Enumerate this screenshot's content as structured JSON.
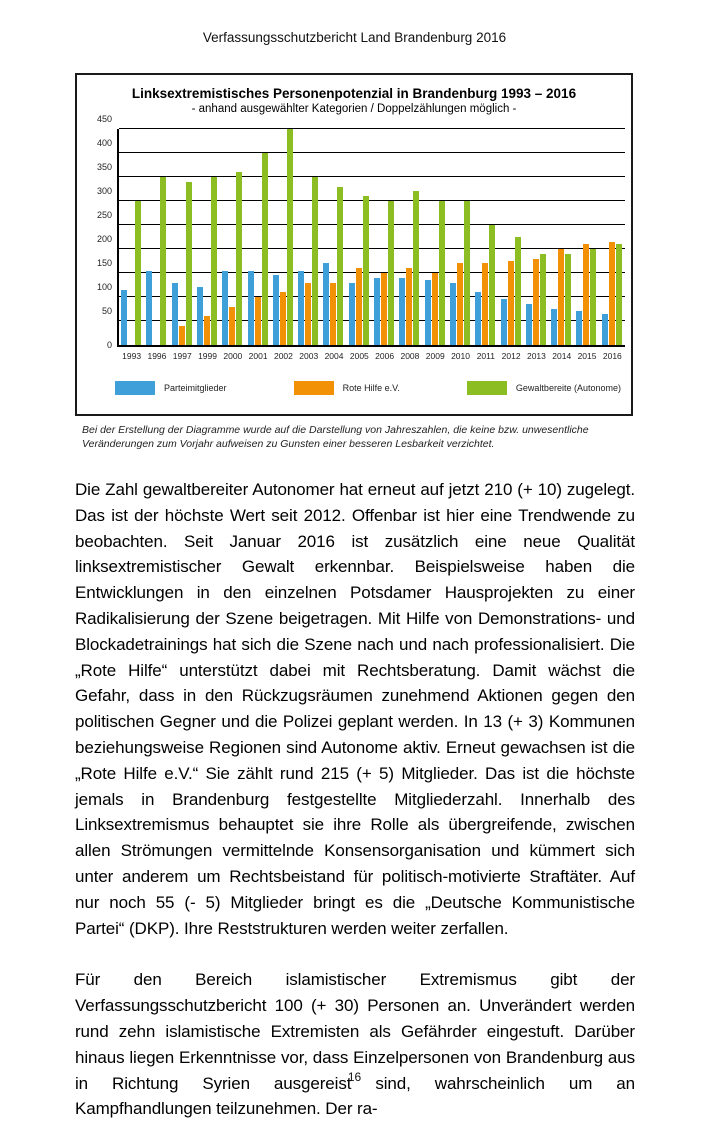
{
  "page": {
    "header_title": "Verfassungsschutzbericht Land Brandenburg 2016",
    "page_number": "16"
  },
  "chart_data": {
    "type": "bar",
    "title": "Linksextremistisches Personenpotenzial in Brandenburg 1993 – 2016",
    "subtitle": "- anhand ausgewählter Kategorien / Doppelzählungen möglich -",
    "categories": [
      "1993",
      "1996",
      "1997",
      "1999",
      "2000",
      "2001",
      "2002",
      "2003",
      "2004",
      "2005",
      "2006",
      "2008",
      "2009",
      "2010",
      "2011",
      "2012",
      "2013",
      "2014",
      "2015",
      "2016"
    ],
    "series": [
      {
        "name": "Parteimitglieder",
        "color": "#3FA0D9",
        "values": [
          115,
          155,
          130,
          120,
          155,
          155,
          145,
          155,
          170,
          130,
          140,
          140,
          135,
          130,
          110,
          95,
          85,
          75,
          70,
          65
        ]
      },
      {
        "name": "Rote Hilfe e.V.",
        "color": "#F29105",
        "values": [
          null,
          null,
          40,
          60,
          80,
          100,
          110,
          130,
          130,
          160,
          150,
          160,
          150,
          170,
          170,
          175,
          180,
          200,
          210,
          215
        ]
      },
      {
        "name": "Gewaltbereite (Autonome)",
        "color": "#8CBD22",
        "values": [
          300,
          350,
          340,
          350,
          360,
          400,
          450,
          350,
          330,
          310,
          300,
          320,
          300,
          300,
          250,
          225,
          190,
          190,
          200,
          210
        ]
      }
    ],
    "xlabel": "",
    "ylabel": "",
    "ylim": [
      0,
      450
    ],
    "ytick_step": 50,
    "grid": true,
    "legend_position": "bottom"
  },
  "note": "Bei der Erstellung der Diagramme wurde auf die Darstellung von Jahreszahlen, die keine bzw. unwesentliche Veränderungen zum Vorjahr aufweisen zu Gunsten einer besseren Lesbarkeit verzichtet.",
  "paragraphs": [
    "Die Zahl gewaltbereiter Autonomer hat erneut auf jetzt 210 (+ 10) zugelegt. Das ist der höchste Wert seit 2012. Offenbar ist hier eine Trendwende zu beobachten. Seit Januar 2016 ist zusätzlich eine neue Qualität linksextremistischer Gewalt erkennbar. Beispielsweise haben die Entwicklungen in den einzelnen Potsdamer Hausprojekten zu einer Radikalisierung der Szene beigetragen. Mit Hilfe von Demonstrations- und Blockadetrainings hat sich die Szene nach und nach professionalisiert. Die „Rote Hilfe“ unterstützt dabei mit Rechtsberatung. Damit wächst die Gefahr, dass in den Rückzugsräumen zunehmend Aktionen gegen den politischen Gegner und die Polizei geplant werden. In 13 (+ 3) Kommunen beziehungsweise Regionen sind Autonome aktiv. Erneut gewachsen ist die „Rote Hilfe e.V.“ Sie zählt rund 215 (+ 5) Mitglieder. Das ist die höchste jemals in Brandenburg festgestellte Mitgliederzahl. Innerhalb des Linksextremismus behauptet sie ihre Rolle als übergreifende, zwischen allen Strömungen vermittelnde Konsensorganisation und kümmert sich unter anderem um Rechtsbeistand für politisch-motivierte Straftäter. Auf nur noch 55 (- 5) Mitglieder bringt es die „Deutsche Kommunistische Partei“ (DKP). Ihre Reststrukturen werden weiter zerfallen.",
    "Für den Bereich islamistischer Extremismus gibt der Verfassungsschutzbericht 100 (+ 30) Personen an. Unverändert werden rund zehn islamistische Extremisten als Gefährder eingestuft. Darüber hinaus liegen Erkenntnisse vor, dass Einzelpersonen von Brandenburg aus in Richtung Syrien ausgereist sind, wahrscheinlich um an Kampfhandlungen teilzunehmen. Der ra-"
  ]
}
